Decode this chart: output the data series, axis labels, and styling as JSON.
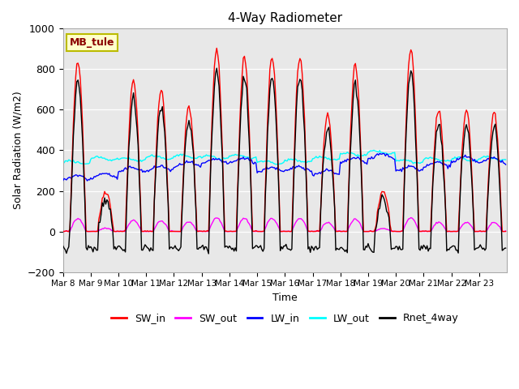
{
  "title": "4-Way Radiometer",
  "xlabel": "Time",
  "ylabel": "Solar Radiation (W/m2)",
  "ylim": [
    -200,
    1000
  ],
  "plot_bg_color": "#e8e8e8",
  "station_label": "MB_tule",
  "x_tick_labels": [
    "Mar 8",
    "Mar 9",
    "Mar 10",
    "Mar 11",
    "Mar 12",
    "Mar 13",
    "Mar 14",
    "Mar 15",
    "Mar 16",
    "Mar 17",
    "Mar 18",
    "Mar 19",
    "Mar 20",
    "Mar 21",
    "Mar 22",
    "Mar 23"
  ],
  "sw_in_peaks": [
    845,
    200,
    750,
    700,
    620,
    900,
    860,
    860,
    860,
    580,
    820,
    200,
    900,
    600,
    600,
    580
  ],
  "lw_in_base": [
    265,
    275,
    305,
    310,
    330,
    345,
    350,
    305,
    310,
    290,
    350,
    370,
    310,
    330,
    355,
    350
  ],
  "lw_out_base": [
    340,
    360,
    355,
    365,
    370,
    365,
    370,
    340,
    350,
    360,
    380,
    390,
    345,
    355,
    355,
    360
  ],
  "series": {
    "SW_in": {
      "color": "#ff0000",
      "lw": 1.0
    },
    "SW_out": {
      "color": "#ff00ff",
      "lw": 1.0
    },
    "LW_in": {
      "color": "#0000ff",
      "lw": 1.0
    },
    "LW_out": {
      "color": "#00ffff",
      "lw": 1.0
    },
    "Rnet_4way": {
      "color": "#000000",
      "lw": 1.0
    }
  }
}
